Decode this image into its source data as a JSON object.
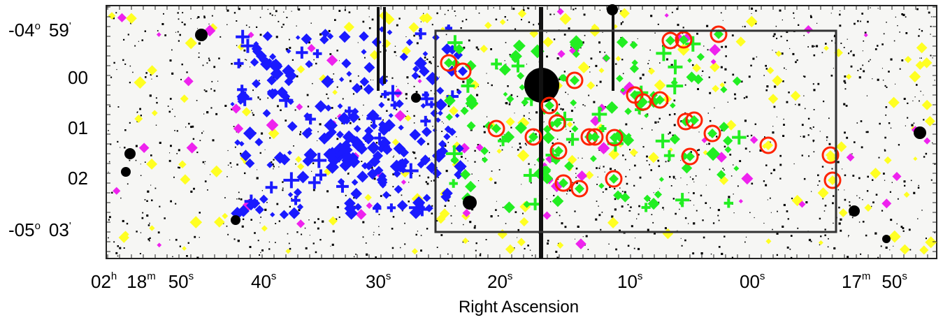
{
  "chart_data": {
    "type": "scatter",
    "title": "",
    "xlabel": "Right Ascension",
    "ylabel": "",
    "x_ticks": [
      {
        "h": "02",
        "hu": "h",
        "m": "18",
        "mu": "m",
        "s": "50",
        "su": "s"
      },
      {
        "s": "40",
        "su": "s"
      },
      {
        "s": "30",
        "su": "s"
      },
      {
        "s": "20",
        "su": "s"
      },
      {
        "s": "10",
        "su": "s"
      },
      {
        "s": "00",
        "su": "s"
      },
      {
        "m": "17",
        "mu": "m",
        "s": "50",
        "su": "s"
      }
    ],
    "y_ticks": [
      {
        "deg": "-04",
        "du": "o",
        "min": "59",
        "mu": "'"
      },
      {
        "min": "00"
      },
      {
        "min": "01"
      },
      {
        "min": "02"
      },
      {
        "deg": "-05",
        "du": "o",
        "min": "03",
        "mu": "'"
      }
    ],
    "colors": {
      "background_noise": "#000000",
      "blue_members": "#1a1aff",
      "green_members": "#22ee22",
      "yellow_sources": "#ffff22",
      "magenta_sources": "#ee22ee",
      "circled": "#ff2200",
      "box": "#333333"
    },
    "marker_groups": [
      {
        "color": "blue",
        "shape": "diamond",
        "region": "west cluster"
      },
      {
        "color": "green",
        "shape": "diamond/cross",
        "region": "inside box"
      },
      {
        "color": "red",
        "shape": "circle",
        "region": "circled subset"
      },
      {
        "color": "yellow",
        "shape": "diamond",
        "region": "field"
      },
      {
        "color": "magenta",
        "shape": "diamond",
        "region": "field"
      }
    ]
  }
}
